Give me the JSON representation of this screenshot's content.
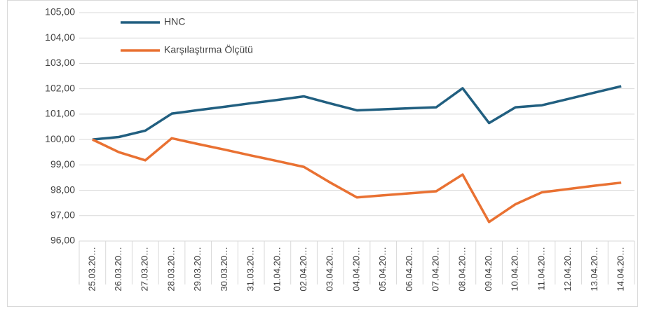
{
  "chart_data": {
    "type": "line",
    "categories": [
      "25.03.20…",
      "26.03.20…",
      "27.03.20…",
      "28.03.20…",
      "29.03.20…",
      "30.03.20…",
      "31.03.20…",
      "01.04.20…",
      "02.04.20…",
      "03.04.20…",
      "04.04.20…",
      "05.04.20…",
      "06.04.20…",
      "07.04.20…",
      "08.04.20…",
      "09.04.20…",
      "10.04.20…",
      "11.04.20…",
      "12.04.20…",
      "13.04.20…",
      "14.04.20…"
    ],
    "series": [
      {
        "name": "HNC",
        "color": "#215f80",
        "values": [
          100.0,
          100.1,
          100.35,
          101.02,
          101.16,
          101.29,
          101.43,
          101.56,
          101.7,
          101.42,
          101.15,
          101.19,
          101.23,
          101.27,
          102.02,
          100.65,
          101.27,
          101.35,
          101.6,
          101.85,
          102.1
        ]
      },
      {
        "name": "Karşılaştırma Ölçütü",
        "color": "#e97132",
        "values": [
          100.0,
          99.5,
          99.18,
          100.05,
          99.82,
          99.6,
          99.37,
          99.15,
          98.92,
          98.3,
          97.72,
          97.8,
          97.88,
          97.96,
          98.62,
          96.75,
          97.45,
          97.92,
          98.05,
          98.18,
          98.3
        ]
      }
    ],
    "ylim": [
      96,
      105
    ],
    "yticks": [
      {
        "value": 96,
        "label": "96,00"
      },
      {
        "value": 97,
        "label": "97,00"
      },
      {
        "value": 98,
        "label": "98,00"
      },
      {
        "value": 99,
        "label": "99,00"
      },
      {
        "value": 100,
        "label": "100,00"
      },
      {
        "value": 101,
        "label": "101,00"
      },
      {
        "value": 102,
        "label": "102,00"
      },
      {
        "value": 103,
        "label": "103,00"
      },
      {
        "value": 104,
        "label": "104,00"
      },
      {
        "value": 105,
        "label": "105,00"
      }
    ],
    "grid": true,
    "legend": "top-left"
  }
}
